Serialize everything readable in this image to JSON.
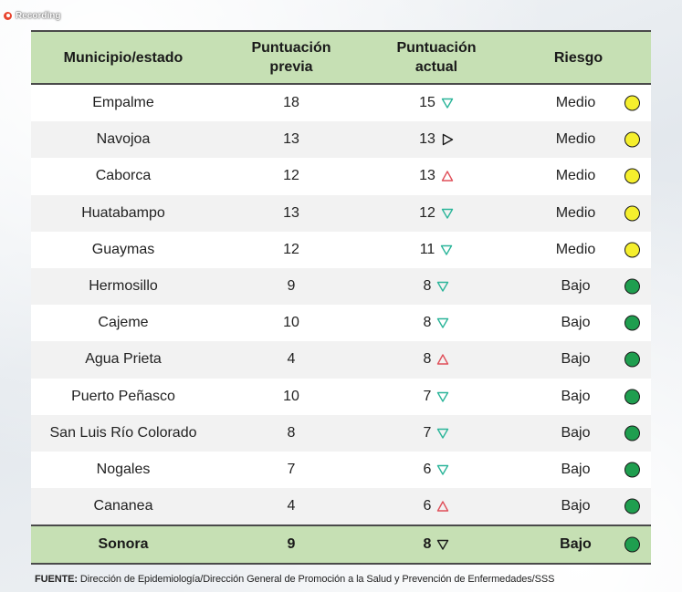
{
  "recording": {
    "label": "Recording"
  },
  "colors": {
    "header_bg": "#c6e0b4",
    "risk_medio": "#f5ef2d",
    "risk_bajo": "#1f9e4f",
    "trend_down": "#2cb59a",
    "trend_up": "#e0505a",
    "trend_flat": "#1a1a1a"
  },
  "table": {
    "headers": {
      "municipio": "Municipio/estado",
      "previa_1": "Puntuación",
      "previa_2": "previa",
      "actual_1": "Puntuación",
      "actual_2": "actual",
      "riesgo": "Riesgo"
    },
    "rows": [
      {
        "municipio": "Empalme",
        "previa": "18",
        "actual": "15",
        "trend": "down",
        "riesgo": "Medio",
        "level": "medio"
      },
      {
        "municipio": "Navojoa",
        "previa": "13",
        "actual": "13",
        "trend": "same",
        "riesgo": "Medio",
        "level": "medio"
      },
      {
        "municipio": "Caborca",
        "previa": "12",
        "actual": "13",
        "trend": "up",
        "riesgo": "Medio",
        "level": "medio"
      },
      {
        "municipio": "Huatabampo",
        "previa": "13",
        "actual": "12",
        "trend": "down",
        "riesgo": "Medio",
        "level": "medio"
      },
      {
        "municipio": "Guaymas",
        "previa": "12",
        "actual": "11",
        "trend": "down",
        "riesgo": "Medio",
        "level": "medio"
      },
      {
        "municipio": "Hermosillo",
        "previa": "9",
        "actual": "8",
        "trend": "down",
        "riesgo": "Bajo",
        "level": "bajo"
      },
      {
        "municipio": "Cajeme",
        "previa": "10",
        "actual": "8",
        "trend": "down",
        "riesgo": "Bajo",
        "level": "bajo"
      },
      {
        "municipio": "Agua Prieta",
        "previa": "4",
        "actual": "8",
        "trend": "up",
        "riesgo": "Bajo",
        "level": "bajo"
      },
      {
        "municipio": "Puerto Peñasco",
        "previa": "10",
        "actual": "7",
        "trend": "down",
        "riesgo": "Bajo",
        "level": "bajo"
      },
      {
        "municipio": "San Luis Río Colorado",
        "previa": "8",
        "actual": "7",
        "trend": "down",
        "riesgo": "Bajo",
        "level": "bajo"
      },
      {
        "municipio": "Nogales",
        "previa": "7",
        "actual": "6",
        "trend": "down",
        "riesgo": "Bajo",
        "level": "bajo"
      },
      {
        "municipio": "Cananea",
        "previa": "4",
        "actual": "6",
        "trend": "up",
        "riesgo": "Bajo",
        "level": "bajo"
      }
    ],
    "total": {
      "municipio": "Sonora",
      "previa": "9",
      "actual": "8",
      "trend": "down",
      "riesgo": "Bajo",
      "level": "bajo"
    }
  },
  "footer": {
    "label": "FUENTE:",
    "text": " Dirección de Epidemiología/Dirección General de Promoción a la Salud y Prevención de Enfermedades/SSS"
  }
}
